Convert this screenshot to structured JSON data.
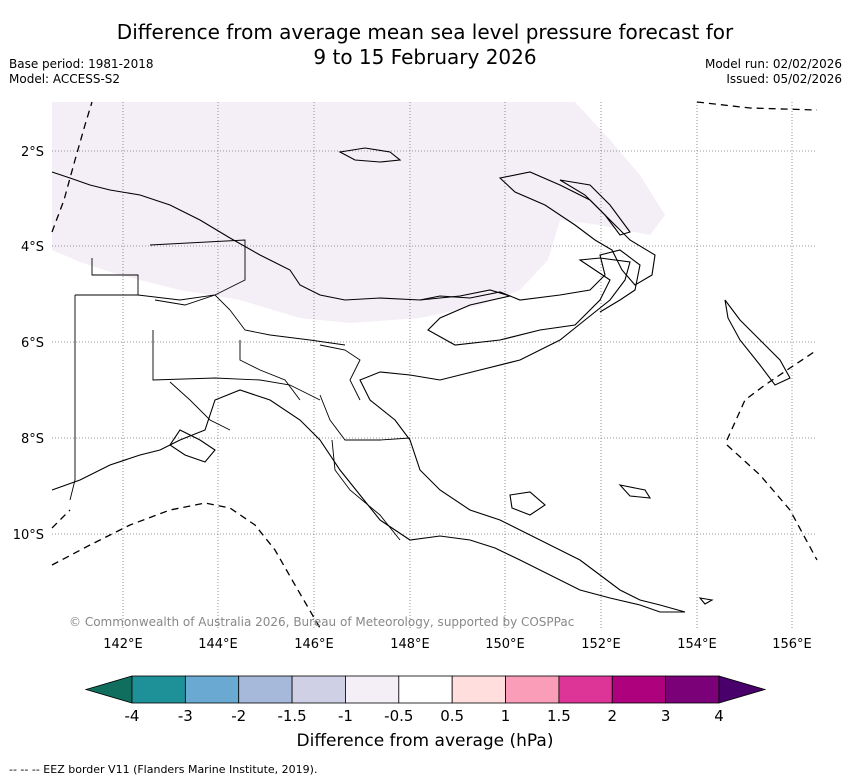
{
  "title_line1": "Difference from average mean sea level pressure forecast for",
  "title_line2": "9 to 15 February 2026",
  "meta_left": {
    "base_period": "Base period: 1981-2018",
    "model": "Model: ACCESS-S2"
  },
  "meta_right": {
    "model_run": "Model run: 02/02/2026",
    "issued": "Issued: 05/02/2026"
  },
  "lat_labels": [
    "2°S",
    "4°S",
    "6°S",
    "8°S",
    "10°S"
  ],
  "lon_labels": [
    "142°E",
    "144°E",
    "146°E",
    "148°E",
    "150°E",
    "152°E",
    "154°E",
    "156°E"
  ],
  "copyright": "© Commonwealth of Australia 2026, Bureau of Meteorology, supported by COSPPac",
  "colorbar": {
    "title": "Difference from average (hPa)",
    "ticks": [
      "-4",
      "-3",
      "-2",
      "-1.5",
      "-1",
      "-0.5",
      "0.5",
      "1",
      "1.5",
      "2",
      "3",
      "4"
    ],
    "colors": [
      "#0f6e5e",
      "#1e9098",
      "#69a9d2",
      "#a6b9da",
      "#cfd0e6",
      "#f4eef6",
      "#ffffff",
      "#ffdedd",
      "#f99db8",
      "#dd3497",
      "#ae017e",
      "#7a0177",
      "#49006a"
    ]
  },
  "eez_legend": "-- -- -- EEZ border V11 (Flanders Marine Institute, 2019)."
}
